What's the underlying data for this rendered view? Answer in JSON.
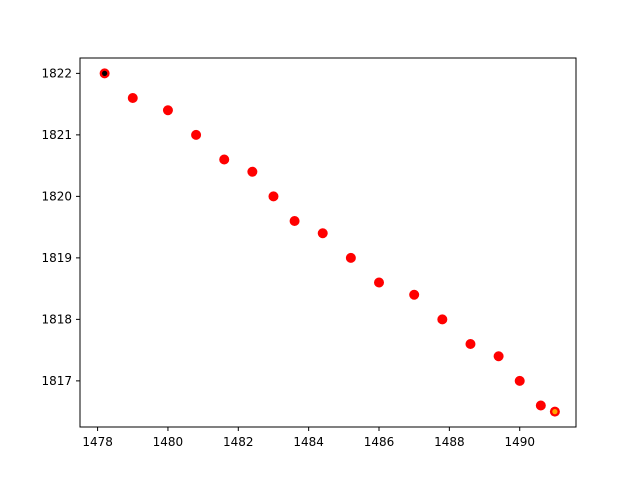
{
  "chart_data": {
    "type": "scatter",
    "title": "",
    "xlabel": "",
    "ylabel": "",
    "xlim": [
      1477.5,
      1491.6
    ],
    "ylim": [
      1816.25,
      1822.25
    ],
    "grid": false,
    "x_ticks": [
      1478,
      1480,
      1482,
      1484,
      1486,
      1488,
      1490
    ],
    "y_ticks": [
      1817,
      1818,
      1819,
      1820,
      1821,
      1822
    ],
    "series": [
      {
        "color": "#ff0000",
        "x": [
          1478.2,
          1479.0,
          1480.0,
          1480.8,
          1481.6,
          1482.4,
          1483.0,
          1483.6,
          1484.4,
          1485.2,
          1486.0,
          1487.0,
          1487.8,
          1488.6,
          1489.4,
          1490.0,
          1490.6,
          1491.0
        ],
        "y": [
          1822.0,
          1821.6,
          1821.4,
          1821.0,
          1820.6,
          1820.4,
          1820.0,
          1819.6,
          1819.4,
          1819.0,
          1818.6,
          1818.4,
          1818.0,
          1817.6,
          1817.4,
          1817.0,
          1816.6,
          1816.5
        ]
      }
    ],
    "highlights": [
      {
        "x": 1478.2,
        "y": 1822.0,
        "color": "#000000"
      },
      {
        "x": 1491.0,
        "y": 1816.5,
        "color": "#ffa500"
      }
    ]
  }
}
